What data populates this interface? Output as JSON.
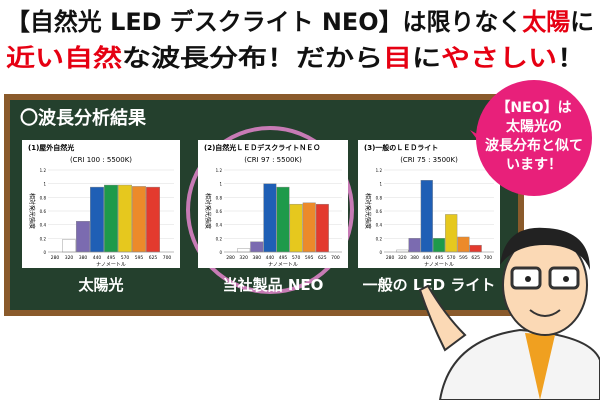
{
  "headline": [
    [
      {
        "text": "【自然光 LED デスクライト NEO】は限りなく",
        "hl": false
      },
      {
        "text": "太陽",
        "hl": true
      },
      {
        "text": "に",
        "hl": false
      }
    ],
    [
      {
        "text": "近い自然",
        "hl": true
      },
      {
        "text": "な波長分布！だから",
        "hl": false
      },
      {
        "text": "目",
        "hl": true
      },
      {
        "text": "に",
        "hl": false
      },
      {
        "text": "やさしい",
        "hl": true
      },
      {
        "text": "！",
        "hl": false
      }
    ]
  ],
  "board_title": "〇波長分析結果",
  "bubble": [
    "【NEO】は",
    "太陽光の",
    "波長分布と似て",
    "います！"
  ],
  "captions": [
    "太陽光",
    "当社製品 NEO",
    "一般の LED ライト"
  ],
  "chart_data": [
    {
      "type": "bar",
      "title": "(1)屋外自然光",
      "subtitle": "(CRI 100 : 5500K)",
      "y_label": "相対発光強度",
      "x_label": "ナノメートル",
      "categories": [
        "280",
        "320",
        "380",
        "440",
        "495",
        "570",
        "595",
        "625",
        "700"
      ],
      "values": [
        null,
        0.18,
        0.45,
        0.95,
        0.98,
        0.98,
        0.96,
        0.95,
        null
      ],
      "colors": [
        null,
        "#ffffff",
        "#7b6bb0",
        "#1f5fb5",
        "#1e9a4a",
        "#e6c81e",
        "#ec8a2a",
        "#e33a2e",
        null
      ],
      "ylim": [
        0,
        1.2
      ],
      "yticks": [
        0,
        0.2,
        0.4,
        0.6,
        0.8,
        1,
        1.2
      ]
    },
    {
      "type": "bar",
      "title": "(2)自然光ＬＥＤデスクライトＮＥＯ",
      "subtitle": "(CRI 97 : 5500K)",
      "y_label": "相対発光強度",
      "x_label": "ナノメートル",
      "categories": [
        "280",
        "320",
        "380",
        "440",
        "495",
        "570",
        "595",
        "625",
        "700"
      ],
      "values": [
        null,
        0.05,
        0.15,
        1,
        0.95,
        0.7,
        0.72,
        0.7,
        null
      ],
      "colors": [
        null,
        "#ffffff",
        "#7b6bb0",
        "#1f5fb5",
        "#1e9a4a",
        "#e6c81e",
        "#ec8a2a",
        "#e33a2e",
        null
      ],
      "ylim": [
        0,
        1.2
      ],
      "yticks": [
        0,
        0.2,
        0.4,
        0.6,
        0.8,
        1,
        1.2
      ]
    },
    {
      "type": "bar",
      "title": "(3)一般のＬＥＤライト",
      "subtitle": "(CRI 75 : 3500K)",
      "y_label": "相対発光強度",
      "x_label": "ナノメートル",
      "categories": [
        "280",
        "320",
        "380",
        "440",
        "495",
        "570",
        "595",
        "625",
        "700"
      ],
      "values": [
        null,
        0.03,
        0.2,
        1.05,
        0.2,
        0.55,
        0.22,
        0.1,
        null
      ],
      "colors": [
        null,
        "#ffffff",
        "#7b6bb0",
        "#1f5fb5",
        "#1e9a4a",
        "#e6c81e",
        "#ec8a2a",
        "#e33a2e",
        null
      ],
      "ylim": [
        0,
        1.2
      ],
      "yticks": [
        0,
        0.2,
        0.4,
        0.6,
        0.8,
        1,
        1.2
      ]
    }
  ]
}
